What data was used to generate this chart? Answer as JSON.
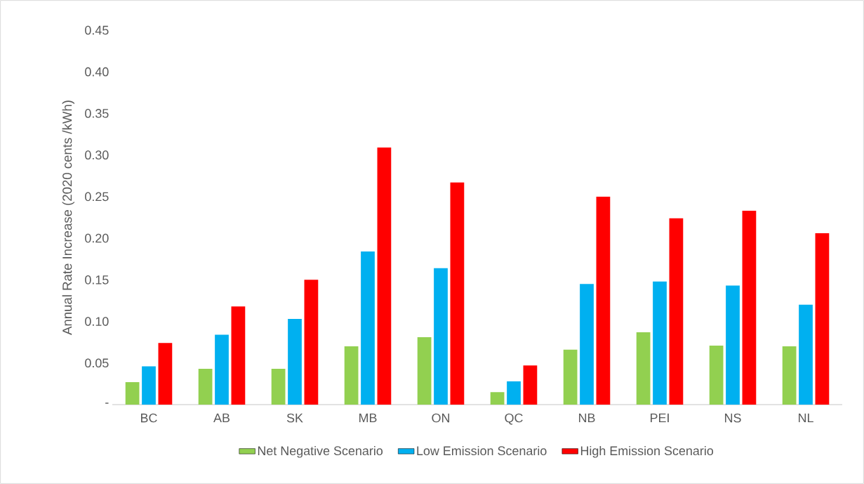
{
  "chart_data": {
    "type": "bar",
    "ylabel": "Annual Rate Increase (2020 cents /kWh)",
    "categories": [
      "BC",
      "AB",
      "SK",
      "MB",
      "ON",
      "QC",
      "NB",
      "PEI",
      "NS",
      "NL"
    ],
    "series": [
      {
        "name": "Net Negative Scenario",
        "color": "#92d050",
        "values": [
          0.027,
          0.043,
          0.043,
          0.07,
          0.081,
          0.015,
          0.066,
          0.087,
          0.071,
          0.07
        ]
      },
      {
        "name": "Low Emission Scenario",
        "color": "#00b0f0",
        "values": [
          0.046,
          0.084,
          0.103,
          0.184,
          0.164,
          0.028,
          0.145,
          0.148,
          0.143,
          0.12
        ]
      },
      {
        "name": "High Emission Scenario",
        "color": "#ff0000",
        "values": [
          0.074,
          0.118,
          0.15,
          0.309,
          0.267,
          0.047,
          0.25,
          0.224,
          0.233,
          0.206
        ]
      }
    ],
    "ylim": [
      0,
      0.45
    ],
    "yticks": [
      {
        "value": 0,
        "label": "-"
      },
      0.05,
      {
        "value": 0.1,
        "label": "0.10"
      },
      0.15,
      {
        "value": 0.2,
        "label": "0.20"
      },
      0.25,
      {
        "value": 0.3,
        "label": "0.30"
      },
      0.35,
      {
        "value": 0.4,
        "label": "0.40"
      },
      0.45
    ],
    "grid": false,
    "legend": "bottom"
  }
}
